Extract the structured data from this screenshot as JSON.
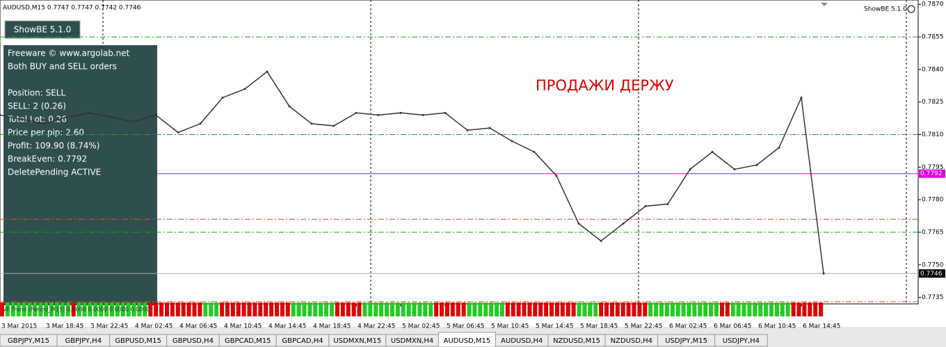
{
  "window": {
    "header": "AUDUSD,M15  0.7747 0.7747 0.7742 0.7746",
    "indicator_name": "ShowBE 5.1.0"
  },
  "panel": {
    "button": "ShowBE 5.1.0",
    "info_top": [
      "Freeware © www.argolab.net",
      "Both BUY and SELL orders"
    ],
    "info": [
      "Position: SELL",
      "SELL: 2 (0.26)",
      "Total Lot: 0.26",
      "Price per pip: 2.60",
      "Profit: 109.90 (8.74%)",
      "BreakEven: 0.7792",
      "DeletePending ACTIVE"
    ]
  },
  "indicator_strip": {
    "label": "VF Trend (Period_M15) 0.0000 0.0000 0.0000 0.0000"
  },
  "tabs": {
    "items": [
      "GBPJPY,M15",
      "GBPJPY,H4",
      "GBPUSD,M15",
      "GBPUSD,H4",
      "GBPCAD,M15",
      "GBPCAD,H4",
      "USDMXN,M15",
      "USDMXN,H4",
      "AUDUSD,M15",
      "AUDUSD,H4",
      "NZDUSD,M15",
      "NZDUSD,H4",
      "USDJPY,M15",
      "USDJPY,H4"
    ],
    "active": "AUDUSD,M15"
  },
  "chart_data": {
    "type": "line",
    "annotation": "ПРОДАЖИ  ДЕРЖУ",
    "categories": [
      "3 Mar 2015",
      null,
      "3 Mar 18:45",
      null,
      "3 Mar 22:45",
      null,
      "4 Mar 02:45",
      null,
      "4 Mar 06:45",
      null,
      "4 Mar 10:45",
      null,
      "4 Mar 14:45",
      null,
      "4 Mar 18:45",
      null,
      "4 Mar 22:45",
      null,
      "5 Mar 02:45",
      null,
      "5 Mar 06:45",
      null,
      "5 Mar 10:45",
      null,
      "5 Mar 14:45",
      null,
      "5 Mar 18:45",
      null,
      "5 Mar 22:45",
      null,
      "6 Mar 02:45",
      null,
      "6 Mar 06:45",
      null,
      "6 Mar 10:45",
      null,
      "6 Mar 14:45",
      null
    ],
    "values": [
      0.7819,
      0.7817,
      0.7815,
      0.7818,
      0.782,
      0.7818,
      0.7816,
      0.7819,
      0.7811,
      0.7815,
      0.7827,
      0.7831,
      0.7839,
      0.7823,
      0.7815,
      0.7814,
      0.782,
      0.7819,
      0.782,
      0.7819,
      0.782,
      0.7812,
      0.7813,
      0.7807,
      0.7802,
      0.7791,
      0.7769,
      0.7761,
      0.7769,
      0.7777,
      0.7778,
      0.7794,
      0.7802,
      0.7794,
      0.7796,
      0.7804,
      0.7827,
      0.7746
    ],
    "color": "#333333",
    "ylim": [
      0.7732,
      0.7872
    ],
    "yticks": [
      {
        "value": 0.7735,
        "label": "0.7735"
      },
      {
        "value": 0.775,
        "label": "0.7750"
      },
      {
        "value": 0.7765,
        "label": "0.7765"
      },
      {
        "value": 0.778,
        "label": "0.7780"
      },
      {
        "value": 0.7795,
        "label": "0.7795"
      },
      {
        "value": 0.781,
        "label": "0.7810"
      },
      {
        "value": 0.7825,
        "label": "0.7825"
      },
      {
        "value": 0.784,
        "label": "0.7840"
      },
      {
        "value": 0.7855,
        "label": "0.7855"
      },
      {
        "value": 0.787,
        "label": "0.7870"
      }
    ],
    "breakeven_line": {
      "value": 0.7792,
      "label": "0.7792"
    },
    "bid_line": {
      "value": 0.7746,
      "label": "0.7746"
    },
    "green_levels": [
      0.7855,
      0.781,
      0.7765
    ],
    "red_levels": [
      0.7771,
      0.7733
    ]
  }
}
